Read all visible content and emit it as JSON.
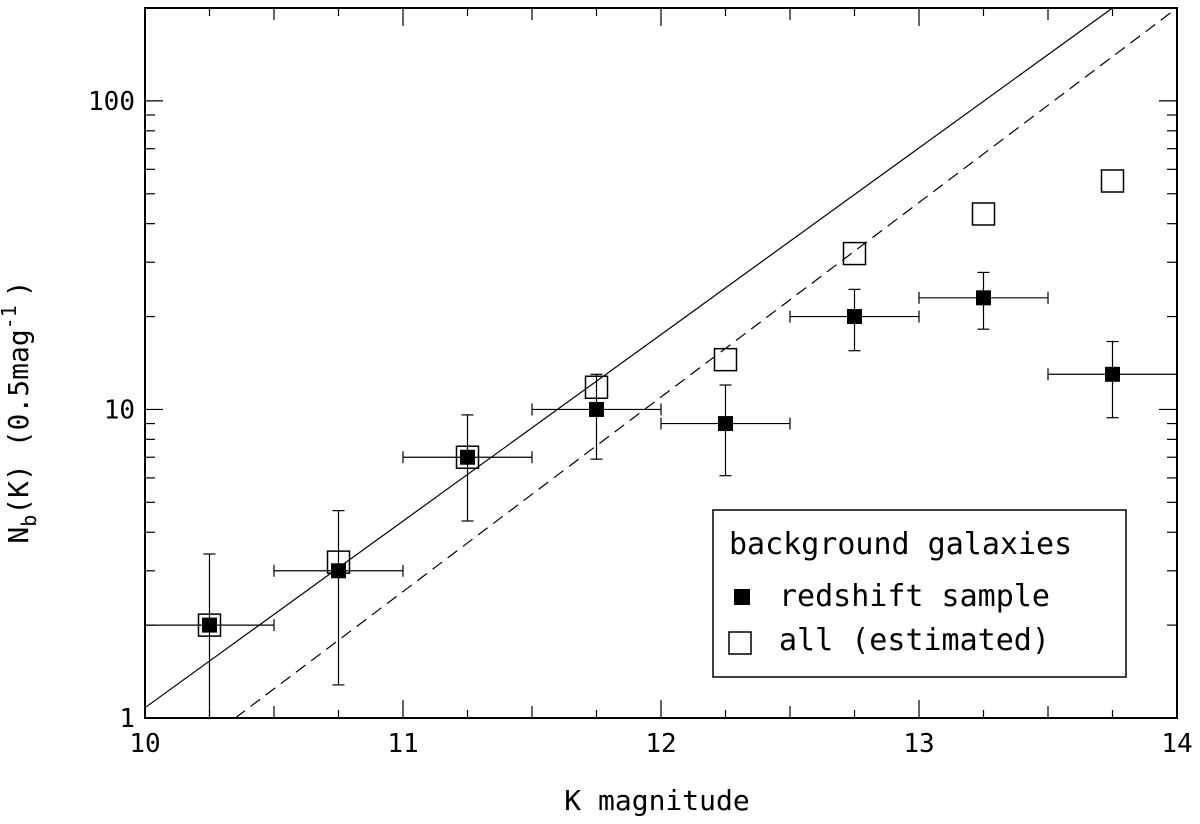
{
  "chart_data": {
    "type": "scatter",
    "xlabel": "K magnitude",
    "ylabel_main": "N",
    "ylabel_sub": "b",
    "ylabel_mid": "(K) (0.5mag",
    "ylabel_sup": "-1",
    "ylabel_end": ")",
    "xlim": [
      10,
      14
    ],
    "ylim": [
      1,
      200
    ],
    "yscale": "log",
    "x_ticks": [
      {
        "value": 10,
        "label": "10"
      },
      {
        "value": 11,
        "label": "11"
      },
      {
        "value": 12,
        "label": "12"
      },
      {
        "value": 13,
        "label": "13"
      },
      {
        "value": 14,
        "label": "14"
      }
    ],
    "y_ticks": [
      {
        "value": 1,
        "label": "1"
      },
      {
        "value": 10,
        "label": "10"
      },
      {
        "value": 100,
        "label": "100"
      }
    ],
    "legend": {
      "title": "background galaxies",
      "placement": "bottom-right",
      "entries": [
        "redshift sample",
        "all (estimated)"
      ]
    },
    "series": [
      {
        "name": "redshift sample",
        "marker": "filled-square",
        "points": [
          {
            "x": 10.25,
            "y": 2.0,
            "xerr": 0.25,
            "ylo": 1.0,
            "yhi": 3.4
          },
          {
            "x": 10.75,
            "y": 3.0,
            "xerr": 0.25,
            "ylo": 1.28,
            "yhi": 4.7
          },
          {
            "x": 11.25,
            "y": 7.0,
            "xerr": 0.25,
            "ylo": 4.35,
            "yhi": 9.6
          },
          {
            "x": 11.75,
            "y": 10.0,
            "xerr": 0.25,
            "ylo": 6.9,
            "yhi": 13.0
          },
          {
            "x": 12.25,
            "y": 9.0,
            "xerr": 0.25,
            "ylo": 6.1,
            "yhi": 12.0
          },
          {
            "x": 12.75,
            "y": 20.0,
            "xerr": 0.25,
            "ylo": 15.5,
            "yhi": 24.5
          },
          {
            "x": 13.25,
            "y": 23.0,
            "xerr": 0.25,
            "ylo": 18.2,
            "yhi": 27.8
          },
          {
            "x": 13.75,
            "y": 13.0,
            "xerr": 0.25,
            "ylo": 9.4,
            "yhi": 16.6
          }
        ]
      },
      {
        "name": "all (estimated)",
        "marker": "open-square",
        "points": [
          {
            "x": 10.25,
            "y": 2.0
          },
          {
            "x": 10.75,
            "y": 3.2
          },
          {
            "x": 11.25,
            "y": 7.0
          },
          {
            "x": 11.75,
            "y": 11.8
          },
          {
            "x": 12.25,
            "y": 14.5
          },
          {
            "x": 12.75,
            "y": 32.0
          },
          {
            "x": 13.25,
            "y": 43.0
          },
          {
            "x": 13.75,
            "y": 55.0
          }
        ]
      }
    ],
    "lines": [
      {
        "style": "solid",
        "from": [
          10.0,
          1.08
        ],
        "to": [
          13.75,
          200
        ]
      },
      {
        "style": "dashed",
        "from": [
          10.35,
          1.0
        ],
        "to": [
          14.0,
          200
        ]
      }
    ],
    "colors": {
      "ink": "#000000",
      "background": "#ffffff"
    }
  }
}
